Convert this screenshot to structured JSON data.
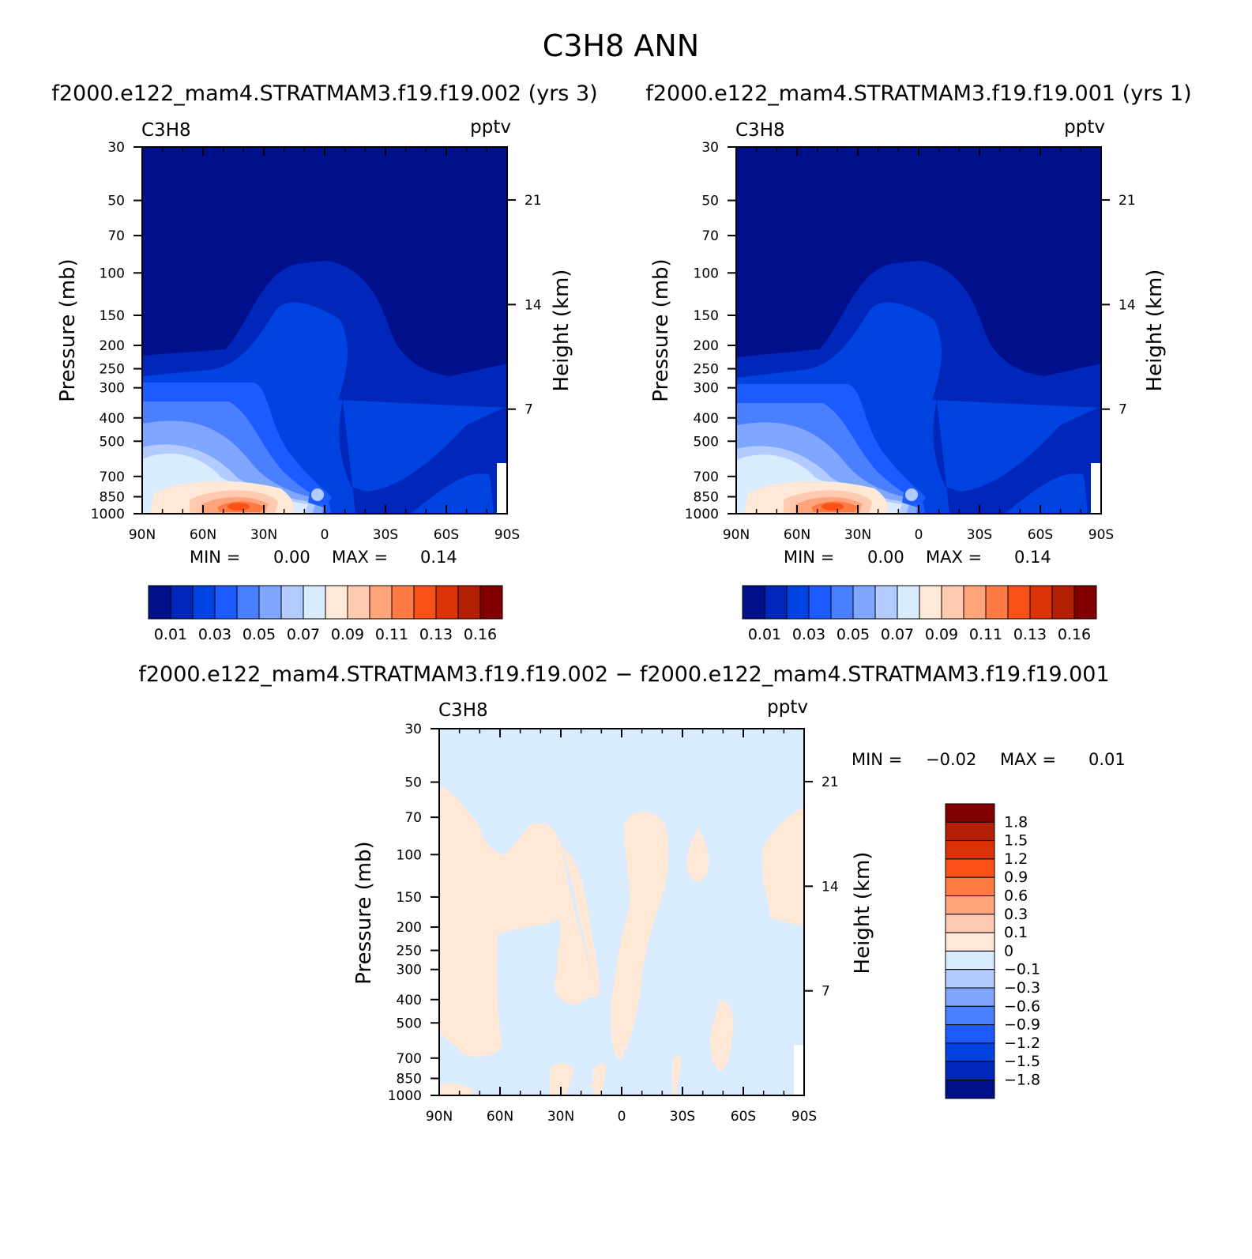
{
  "figure": {
    "title": "C3H8 ANN"
  },
  "colors": {
    "seq": [
      "#000f8c",
      "#0027b9",
      "#0043e1",
      "#1c5bff",
      "#4a7fff",
      "#80a7ff",
      "#b3cbff",
      "#d9ebff",
      "#ffe9d6",
      "#ffcab0",
      "#ffa47b",
      "#ff7b45",
      "#fa5119",
      "#db3207",
      "#b41e05",
      "#820000"
    ],
    "diff": [
      "#820000",
      "#b41e05",
      "#db3207",
      "#fa5119",
      "#ff7b45",
      "#ffa47b",
      "#ffcab0",
      "#ffe9d6",
      "#d9ebff",
      "#b3cbff",
      "#80a7ff",
      "#4a7fff",
      "#1c5bff",
      "#0043e1",
      "#0027b9",
      "#000f8c"
    ]
  },
  "chart_data": [
    {
      "type": "contour",
      "panel": "left",
      "subtitle": "f2000.e122_mam4.STRATMAM3.f19.f19.002 (yrs 3)",
      "left_label": "C3H8",
      "right_label": "pptv",
      "xlabel": "",
      "ylabel": "Pressure (mb)",
      "y2label": "Height (km)",
      "x_ticks": [
        "90N",
        "60N",
        "30N",
        "0",
        "30S",
        "60S",
        "90S"
      ],
      "y_ticks": [
        "30",
        "50",
        "70",
        "100",
        "150",
        "200",
        "250",
        "300",
        "400",
        "500",
        "700",
        "850",
        "1000"
      ],
      "y2_ticks": [
        "21",
        "14",
        "7"
      ],
      "ylim": [
        1000,
        30
      ],
      "min_text": "MIN =",
      "min_value": "0.00",
      "max_text": "MAX =",
      "max_value": "0.14",
      "colorbar_labels": [
        "0.01",
        "0.03",
        "0.05",
        "0.07",
        "0.09",
        "0.11",
        "0.13",
        "0.16"
      ]
    },
    {
      "type": "contour",
      "panel": "right",
      "subtitle": "f2000.e122_mam4.STRATMAM3.f19.f19.001 (yrs 1)",
      "left_label": "C3H8",
      "right_label": "pptv",
      "xlabel": "",
      "ylabel": "Pressure (mb)",
      "y2label": "Height (km)",
      "x_ticks": [
        "90N",
        "60N",
        "30N",
        "0",
        "30S",
        "60S",
        "90S"
      ],
      "y_ticks": [
        "30",
        "50",
        "70",
        "100",
        "150",
        "200",
        "250",
        "300",
        "400",
        "500",
        "700",
        "850",
        "1000"
      ],
      "y2_ticks": [
        "21",
        "14",
        "7"
      ],
      "ylim": [
        1000,
        30
      ],
      "min_text": "MIN =",
      "min_value": "0.00",
      "max_text": "MAX =",
      "max_value": "0.14",
      "colorbar_labels": [
        "0.01",
        "0.03",
        "0.05",
        "0.07",
        "0.09",
        "0.11",
        "0.13",
        "0.16"
      ]
    },
    {
      "type": "contour",
      "panel": "diff",
      "subtitle": "f2000.e122_mam4.STRATMAM3.f19.f19.002 − f2000.e122_mam4.STRATMAM3.f19.f19.001",
      "left_label": "C3H8",
      "right_label": "pptv",
      "xlabel": "",
      "ylabel": "Pressure (mb)",
      "y2label": "Height (km)",
      "x_ticks": [
        "90N",
        "60N",
        "30N",
        "0",
        "30S",
        "60S",
        "90S"
      ],
      "y_ticks": [
        "30",
        "50",
        "70",
        "100",
        "150",
        "200",
        "250",
        "300",
        "400",
        "500",
        "700",
        "850",
        "1000"
      ],
      "y2_ticks": [
        "21",
        "14",
        "7"
      ],
      "ylim": [
        1000,
        30
      ],
      "min_text": "MIN =",
      "min_value": "−0.02",
      "max_text": "MAX =",
      "max_value": "0.01",
      "colorbar_labels": [
        "1.8",
        "1.5",
        "1.2",
        "0.9",
        "0.6",
        "0.3",
        "0.1",
        "0",
        "−0.1",
        "−0.3",
        "−0.6",
        "−0.9",
        "−1.2",
        "−1.5",
        "−1.8"
      ]
    }
  ]
}
